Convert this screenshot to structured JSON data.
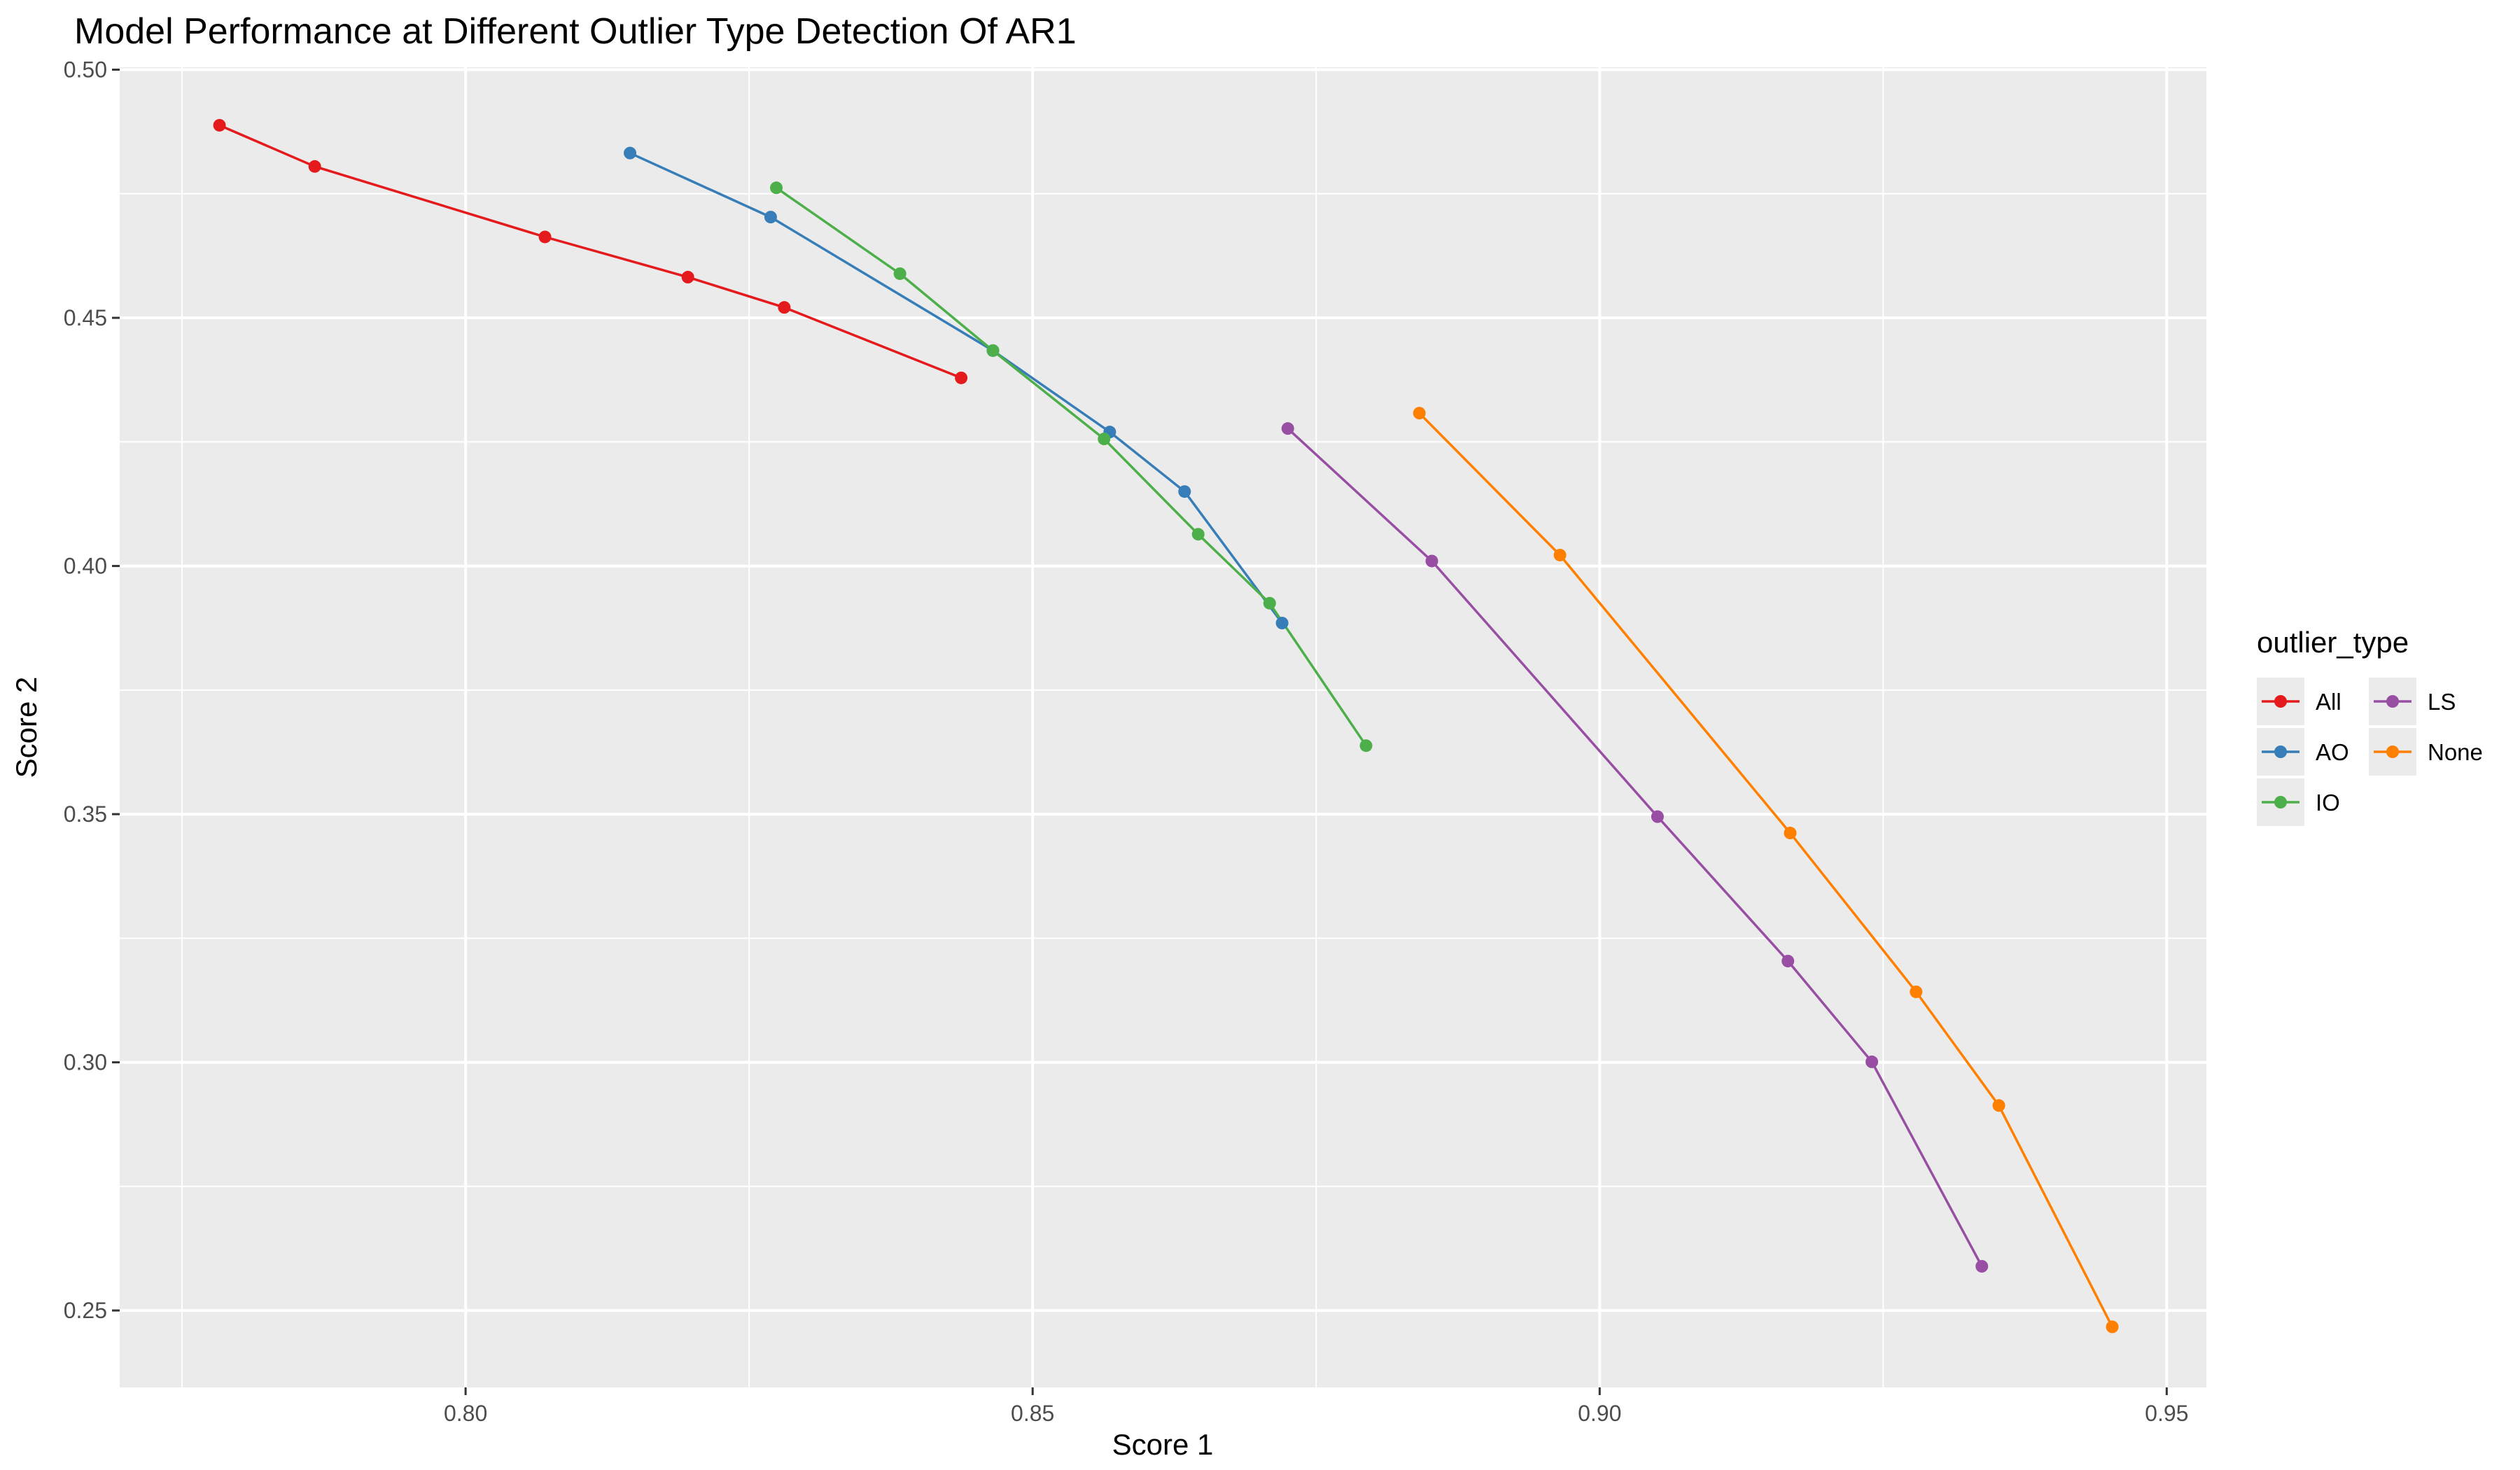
{
  "chart_data": {
    "type": "line",
    "title": "Model Performance at Different Outlier Type Detection Of AR1",
    "xlabel": "Score 1",
    "ylabel": "Score 2",
    "xlim": [
      0.7695,
      0.9535
    ],
    "ylim": [
      0.2345,
      0.5005
    ],
    "x_ticks": [
      "0.80",
      "0.85",
      "0.90",
      "0.95"
    ],
    "y_ticks": [
      "0.25",
      "0.30",
      "0.35",
      "0.40",
      "0.45",
      "0.50"
    ],
    "grid": true,
    "legend": {
      "title": "outlier_type",
      "position": "right"
    },
    "series": [
      {
        "name": "All",
        "color": "#E41A1C",
        "points": [
          [
            0.7783,
            0.4888
          ],
          [
            0.7867,
            0.4805
          ],
          [
            0.807,
            0.4663
          ],
          [
            0.8196,
            0.4582
          ],
          [
            0.8281,
            0.4521
          ],
          [
            0.8437,
            0.4379
          ]
        ]
      },
      {
        "name": "AO",
        "color": "#377EB8",
        "points": [
          [
            0.8145,
            0.4832
          ],
          [
            0.8269,
            0.4703
          ],
          [
            0.8465,
            0.4434
          ],
          [
            0.8568,
            0.427
          ],
          [
            0.8634,
            0.415
          ],
          [
            0.872,
            0.3885
          ]
        ]
      },
      {
        "name": "IO",
        "color": "#4DAF4A",
        "points": [
          [
            0.8274,
            0.4762
          ],
          [
            0.8383,
            0.4589
          ],
          [
            0.8465,
            0.4434
          ],
          [
            0.8563,
            0.4256
          ],
          [
            0.8646,
            0.4064
          ],
          [
            0.8709,
            0.3925
          ],
          [
            0.8794,
            0.3638
          ]
        ]
      },
      {
        "name": "LS",
        "color": "#984EA3",
        "points": [
          [
            0.8725,
            0.4277
          ],
          [
            0.8852,
            0.401
          ],
          [
            0.9051,
            0.3495
          ],
          [
            0.9166,
            0.3204
          ],
          [
            0.924,
            0.3001
          ],
          [
            0.9337,
            0.2589
          ]
        ]
      },
      {
        "name": "None",
        "color": "#FF7F00",
        "points": [
          [
            0.8841,
            0.4308
          ],
          [
            0.8965,
            0.4022
          ],
          [
            0.9168,
            0.3462
          ],
          [
            0.9279,
            0.3142
          ],
          [
            0.9352,
            0.2913
          ],
          [
            0.9452,
            0.2467
          ]
        ]
      }
    ]
  }
}
